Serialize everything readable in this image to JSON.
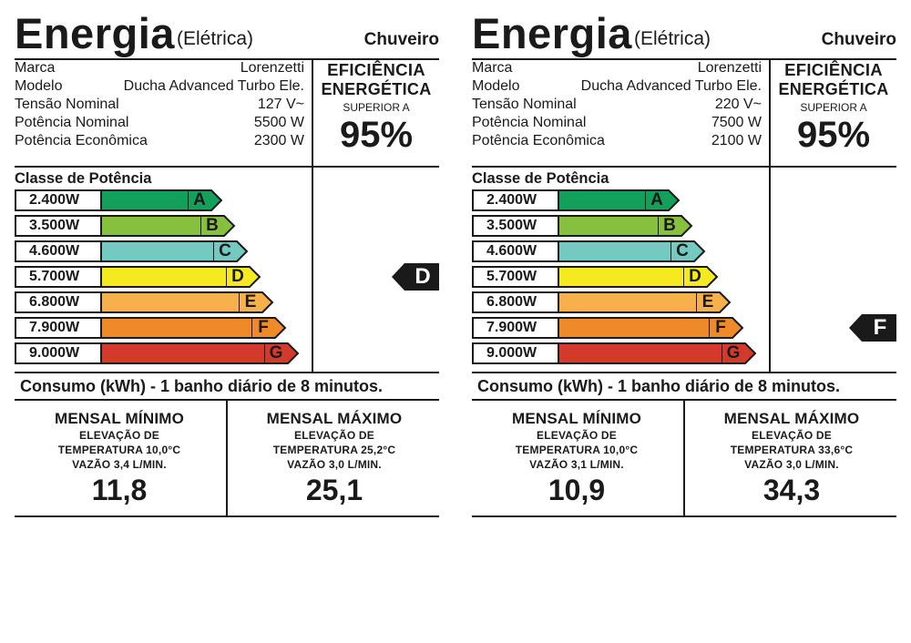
{
  "class_colors": [
    "#12a05a",
    "#86c03e",
    "#74c9c1",
    "#f5ea20",
    "#f7b04b",
    "#ef8a2b",
    "#d43a2c"
  ],
  "labels": [
    {
      "header": {
        "title": "Energia",
        "subtitle": "(Elétrica)",
        "product": "Chuveiro"
      },
      "specs": [
        {
          "key": "Marca",
          "value": "Lorenzetti"
        },
        {
          "key": "Modelo",
          "value": "Ducha Advanced Turbo Ele."
        },
        {
          "key": "Tensão Nominal",
          "value": "127 V~"
        },
        {
          "key": "Potência Nominal",
          "value": "5500 W"
        },
        {
          "key": "Potência Econômica",
          "value": "2300 W"
        }
      ],
      "efficiency": {
        "line1": "EFICIÊNCIA",
        "line2": "ENERGÉTICA",
        "line3": "SUPERIOR A",
        "value": "95%"
      },
      "class_title": "Classe de Potência",
      "classes": [
        {
          "power": "2.400W",
          "letter": "A"
        },
        {
          "power": "3.500W",
          "letter": "B"
        },
        {
          "power": "4.600W",
          "letter": "C"
        },
        {
          "power": "5.700W",
          "letter": "D"
        },
        {
          "power": "6.800W",
          "letter": "E"
        },
        {
          "power": "7.900W",
          "letter": "F"
        },
        {
          "power": "9.000W",
          "letter": "G"
        }
      ],
      "rating": "D",
      "consumo_title": "Consumo (kWh) - 1 banho diário de 8 minutos.",
      "monthly": [
        {
          "heading": "MENSAL MÍNIMO",
          "line1": "ELEVAÇÃO DE",
          "line2": "TEMPERATURA 10,0°C",
          "line3": "VAZÃO 3,4 L/MIN.",
          "value": "11,8"
        },
        {
          "heading": "MENSAL MÁXIMO",
          "line1": "ELEVAÇÃO DE",
          "line2": "TEMPERATURA 25,2°C",
          "line3": "VAZÃO 3,0 L/MIN.",
          "value": "25,1"
        }
      ]
    },
    {
      "header": {
        "title": "Energia",
        "subtitle": "(Elétrica)",
        "product": "Chuveiro"
      },
      "specs": [
        {
          "key": "Marca",
          "value": "Lorenzetti"
        },
        {
          "key": "Modelo",
          "value": "Ducha Advanced Turbo Ele."
        },
        {
          "key": "Tensão Nominal",
          "value": "220 V~"
        },
        {
          "key": "Potência Nominal",
          "value": "7500 W"
        },
        {
          "key": "Potência Econômica",
          "value": "2100 W"
        }
      ],
      "efficiency": {
        "line1": "EFICIÊNCIA",
        "line2": "ENERGÉTICA",
        "line3": "SUPERIOR A",
        "value": "95%"
      },
      "class_title": "Classe de Potência",
      "classes": [
        {
          "power": "2.400W",
          "letter": "A"
        },
        {
          "power": "3.500W",
          "letter": "B"
        },
        {
          "power": "4.600W",
          "letter": "C"
        },
        {
          "power": "5.700W",
          "letter": "D"
        },
        {
          "power": "6.800W",
          "letter": "E"
        },
        {
          "power": "7.900W",
          "letter": "F"
        },
        {
          "power": "9.000W",
          "letter": "G"
        }
      ],
      "rating": "F",
      "consumo_title": "Consumo (kWh) - 1 banho diário de 8 minutos.",
      "monthly": [
        {
          "heading": "MENSAL MÍNIMO",
          "line1": "ELEVAÇÃO DE",
          "line2": "TEMPERATURA 10,0°C",
          "line3": "VAZÃO 3,1 L/MIN.",
          "value": "10,9"
        },
        {
          "heading": "MENSAL MÁXIMO",
          "line1": "ELEVAÇÃO DE",
          "line2": "TEMPERATURA 33,6°C",
          "line3": "VAZÃO 3,0 L/MIN.",
          "value": "34,3"
        }
      ]
    }
  ]
}
